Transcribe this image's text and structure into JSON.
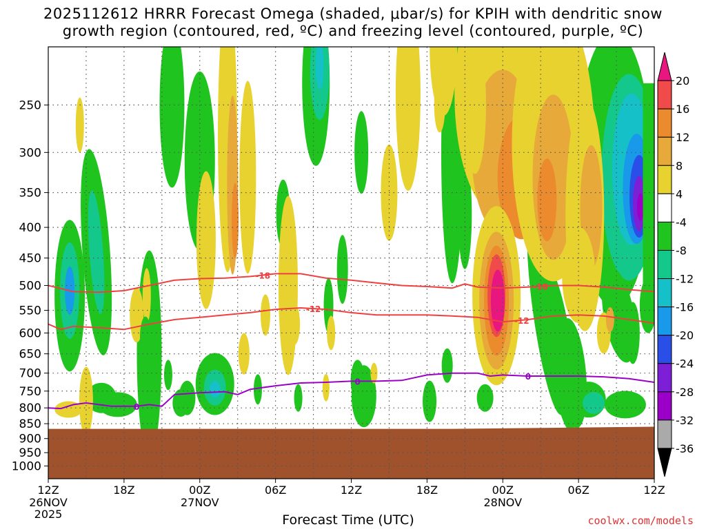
{
  "title_line1": "2025112612 HRRR Forecast Omega (shaded, μbar/s) for KPIH with dendritic snow",
  "title_line2": "growth region (contoured, red, ºC) and freezing level (contoured, purple, ºC)",
  "credit": "coolwx.com/models",
  "chart_data": {
    "type": "heatmap",
    "title": "2025112612 HRRR Forecast Omega (shaded, μbar/s) for KPIH with dendritic snow growth region (contoured, red, ºC) and freezing level (contoured, purple, ºC)",
    "xlabel": "Forecast Time (UTC)",
    "ylabel": "",
    "y_scale": "log pressure (reversed)",
    "ylim": [
      1050,
      200
    ],
    "xlim_hours": [
      0,
      48
    ],
    "y_ticks": [
      250,
      300,
      350,
      400,
      450,
      500,
      550,
      600,
      650,
      700,
      750,
      800,
      850,
      900,
      950,
      1000
    ],
    "x_ticks": [
      {
        "hour": 0,
        "label": "12Z",
        "sub": "26NOV",
        "sub2": "2025"
      },
      {
        "hour": 6,
        "label": "18Z",
        "sub": "",
        "sub2": ""
      },
      {
        "hour": 12,
        "label": "00Z",
        "sub": "27NOV",
        "sub2": ""
      },
      {
        "hour": 18,
        "label": "06Z",
        "sub": "",
        "sub2": ""
      },
      {
        "hour": 24,
        "label": "12Z",
        "sub": "",
        "sub2": ""
      },
      {
        "hour": 30,
        "label": "18Z",
        "sub": "",
        "sub2": ""
      },
      {
        "hour": 36,
        "label": "00Z",
        "sub": "28NOV",
        "sub2": ""
      },
      {
        "hour": 42,
        "label": "06Z",
        "sub": "",
        "sub2": ""
      },
      {
        "hour": 48,
        "label": "12Z",
        "sub": "",
        "sub2": ""
      }
    ],
    "grid": true,
    "colorbar": {
      "labels": [
        "20",
        "16",
        "12",
        "8",
        "4",
        "-4",
        "-8",
        "-12",
        "-16",
        "-20",
        "-24",
        "-28",
        "-32",
        "-36"
      ],
      "colors": [
        "#e8177f",
        "#f04a4a",
        "#ec8a2e",
        "#e6a93a",
        "#e8d230",
        "#ffffff",
        "#1fc41f",
        "#14c78a",
        "#16c0c8",
        "#1899ea",
        "#2a4fe8",
        "#7d1fd6",
        "#9a00c8",
        "#aaaaaa",
        "#000000"
      ]
    },
    "terrain": {
      "color": "#a0522d",
      "surface_pressure_start": 867,
      "surface_pressure_end": 860
    },
    "contours": [
      {
        "name": "-18",
        "color": "#ee4040",
        "label": "-18",
        "x": [
          0,
          2,
          4,
          6,
          8,
          10,
          12,
          14,
          16,
          18,
          20,
          22,
          24,
          26,
          28,
          30,
          32,
          33,
          34,
          36,
          38,
          40,
          42,
          44,
          46,
          48
        ],
        "p": [
          500,
          512,
          513,
          510,
          500,
          490,
          487,
          486,
          483,
          478,
          478,
          486,
          490,
          495,
          500,
          502,
          505,
          497,
          503,
          505,
          503,
          500,
          500,
          503,
          508,
          512
        ]
      },
      {
        "name": "-12",
        "color": "#ee4040",
        "label": "-12",
        "x": [
          0,
          1,
          2,
          4,
          6,
          8,
          10,
          12,
          14,
          16,
          18,
          20,
          22,
          24,
          26,
          28,
          30,
          32,
          34,
          36,
          38,
          40,
          42,
          44,
          46,
          48
        ],
        "p": [
          580,
          592,
          585,
          588,
          592,
          580,
          570,
          565,
          560,
          555,
          548,
          545,
          548,
          555,
          560,
          560,
          560,
          562,
          565,
          575,
          570,
          562,
          560,
          562,
          570,
          578
        ]
      },
      {
        "name": "0",
        "color": "#9a00c8",
        "label": "0",
        "x": [
          0,
          1,
          2,
          3,
          5,
          7,
          8,
          9,
          10,
          12,
          14,
          15,
          16,
          18,
          20,
          22,
          24,
          26,
          28,
          30,
          32,
          34,
          35,
          36,
          38,
          40,
          42,
          44,
          46,
          48
        ],
        "p": [
          800,
          802,
          790,
          785,
          795,
          795,
          790,
          795,
          760,
          755,
          752,
          760,
          745,
          735,
          727,
          725,
          722,
          722,
          720,
          705,
          700,
          700,
          708,
          705,
          708,
          708,
          708,
          710,
          715,
          725
        ]
      }
    ]
  }
}
